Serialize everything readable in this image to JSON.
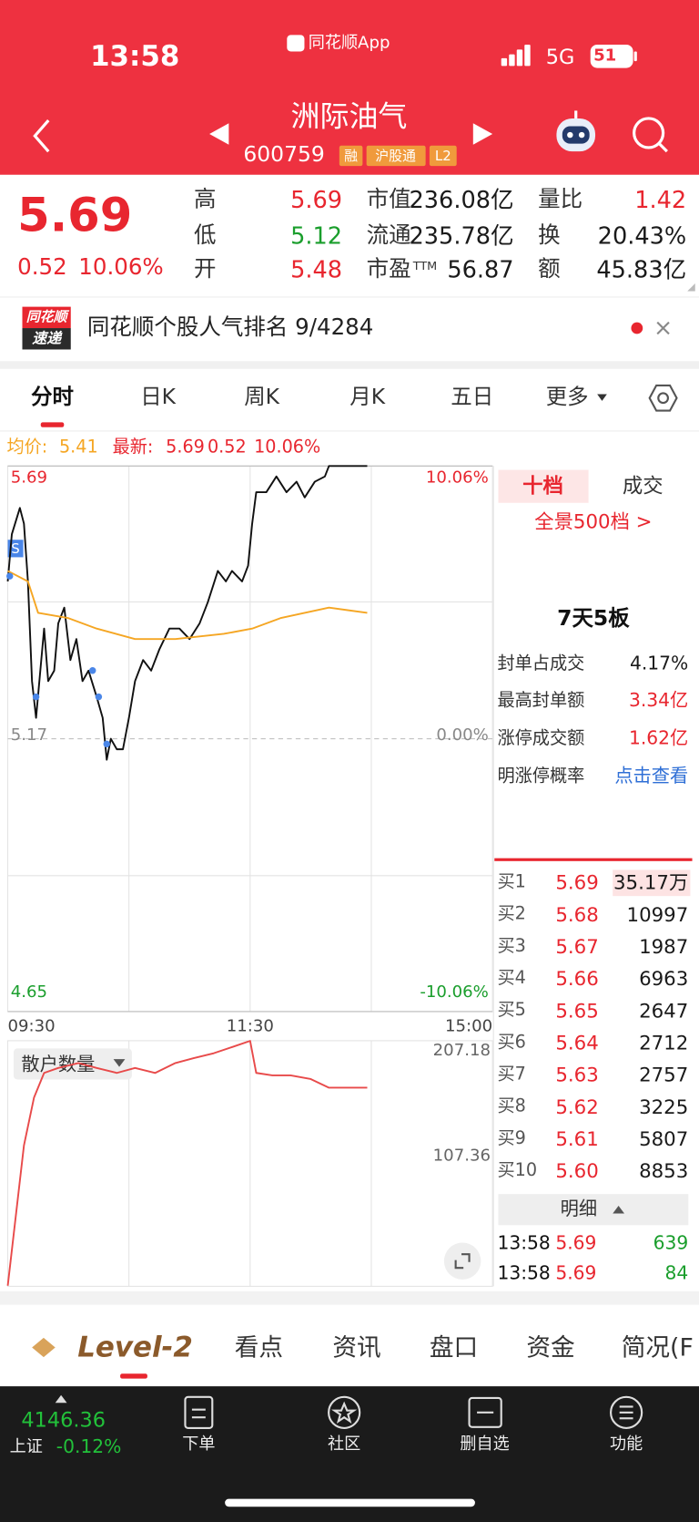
{
  "status_bar": {
    "time": "13:58",
    "app": "同花顺App",
    "network": "5G",
    "battery": "51"
  },
  "header": {
    "name": "洲际油气",
    "code": "600759",
    "tags": [
      "融",
      "沪股通",
      "L2"
    ]
  },
  "quote": {
    "price": "5.69",
    "change": "0.52",
    "change_pct": "10.06%",
    "pe_suffix": "TTM",
    "stats": [
      [
        "高",
        "5.69"
      ],
      [
        "低",
        "5.12"
      ],
      [
        "开",
        "5.48"
      ],
      [
        "市值",
        "236.08亿"
      ],
      [
        "流通",
        "235.78亿"
      ],
      [
        "市盈",
        "56.87"
      ],
      [
        "量比",
        "1.42"
      ],
      [
        "换",
        "20.43%"
      ],
      [
        "额",
        "45.83亿"
      ]
    ]
  },
  "banner": {
    "logo_top": "同花顺",
    "logo_bottom": "速递",
    "text": "同花顺个股人气排名 9/4284"
  },
  "tabs": [
    "分时",
    "日K",
    "周K",
    "月K",
    "五日",
    "更多"
  ],
  "info_line": {
    "avg_label": "均价:",
    "avg": "5.41",
    "latest_label": "最新:",
    "latest": "5.69",
    "change": "0.52",
    "change_pct": "10.06%"
  },
  "chart_data": [
    {
      "type": "line",
      "xlim": [
        0,
        240
      ],
      "xticks": [
        {
          "value": 0,
          "label": "09:30"
        },
        {
          "value": 120,
          "label": "11:30"
        },
        {
          "value": 240,
          "label": "15:00"
        }
      ],
      "ylim": [
        4.65,
        5.69
      ],
      "yticks": [
        5.69,
        5.17,
        4.65
      ],
      "y2lim": [
        -10.06,
        10.06
      ],
      "y2ticks": [
        {
          "value": 10.06,
          "label": "10.06%"
        },
        {
          "value": 0,
          "label": "0.00%"
        },
        {
          "value": -10.06,
          "label": "-10.06%"
        }
      ],
      "grid": true,
      "series": [
        {
          "color": "#111111",
          "x": [
            0,
            2,
            6,
            8,
            10,
            12,
            14,
            18,
            20,
            23,
            25,
            28,
            31,
            34,
            37,
            40,
            44,
            47,
            49,
            51,
            54,
            57,
            60,
            63,
            67,
            71,
            75,
            80,
            85,
            90,
            95,
            99,
            104,
            108,
            111,
            116,
            119,
            121,
            123,
            128,
            133,
            138,
            143,
            147,
            152,
            157,
            159,
            178
          ],
          "values": [
            5.47,
            5.56,
            5.61,
            5.58,
            5.47,
            5.28,
            5.21,
            5.38,
            5.28,
            5.3,
            5.39,
            5.42,
            5.32,
            5.36,
            5.28,
            5.3,
            5.25,
            5.21,
            5.13,
            5.17,
            5.15,
            5.15,
            5.21,
            5.28,
            5.32,
            5.3,
            5.34,
            5.38,
            5.38,
            5.36,
            5.39,
            5.43,
            5.49,
            5.47,
            5.49,
            5.47,
            5.5,
            5.58,
            5.64,
            5.64,
            5.67,
            5.64,
            5.66,
            5.63,
            5.66,
            5.67,
            5.69,
            5.69
          ]
        },
        {
          "color": "#f5a623",
          "x": [
            0,
            10,
            15,
            30,
            44,
            63,
            83,
            107,
            121,
            135,
            159,
            178
          ],
          "values": [
            5.49,
            5.47,
            5.41,
            5.4,
            5.38,
            5.36,
            5.36,
            5.37,
            5.38,
            5.4,
            5.42,
            5.41
          ]
        }
      ],
      "markers": {
        "label": "S",
        "color": "#4a86e8",
        "x": [
          1,
          14,
          42,
          45,
          49
        ],
        "values": [
          5.48,
          5.25,
          5.3,
          5.25,
          5.16
        ]
      }
    },
    {
      "type": "line",
      "title": "散户数量",
      "xlim": [
        0,
        240
      ],
      "ylim": [
        7.54,
        207.18
      ],
      "yticks": [
        207.18,
        107.36
      ],
      "series": [
        {
          "color": "#e84a4a",
          "x": [
            0,
            3,
            8,
            13,
            18,
            25,
            35,
            44,
            54,
            63,
            73,
            83,
            92,
            102,
            111,
            120,
            123,
            131,
            140,
            150,
            159,
            169,
            178
          ],
          "values": [
            8,
            51,
            122,
            161,
            181,
            185,
            189,
            185,
            181,
            185,
            181,
            189,
            193,
            197,
            202,
            207,
            181,
            179,
            179,
            176,
            169,
            169,
            169
          ]
        }
      ]
    }
  ],
  "side_panel": {
    "tabs": [
      "十档",
      "成交"
    ],
    "full_depth": "全景500档 >",
    "streak": "7天5板",
    "stats": [
      [
        "封单占成交",
        "4.17%"
      ],
      [
        "最高封单额",
        "3.34亿"
      ],
      [
        "涨停成交额",
        "1.62亿"
      ],
      [
        "明涨停概率",
        "点击查看"
      ]
    ],
    "bids": [
      [
        "买1",
        "5.69",
        "35.17万"
      ],
      [
        "买2",
        "5.68",
        "10997"
      ],
      [
        "买3",
        "5.67",
        "1987"
      ],
      [
        "买4",
        "5.66",
        "6963"
      ],
      [
        "买5",
        "5.65",
        "2647"
      ],
      [
        "买6",
        "5.64",
        "2712"
      ],
      [
        "买7",
        "5.63",
        "2757"
      ],
      [
        "买8",
        "5.62",
        "3225"
      ],
      [
        "买9",
        "5.61",
        "5807"
      ],
      [
        "买10",
        "5.60",
        "8853"
      ]
    ],
    "detail": "明细",
    "trades": [
      [
        "13:58",
        "5.69",
        "639"
      ],
      [
        "13:58",
        "5.69",
        "84"
      ]
    ]
  },
  "bottom_tabs": [
    "Level-2",
    "看点",
    "资讯",
    "盘口",
    "资金",
    "简况(F"
  ],
  "footer": {
    "index_value": "4146.36",
    "index_name": "上证",
    "index_change": "-0.12%",
    "buttons": [
      "下单",
      "社区",
      "删自选",
      "功能"
    ]
  }
}
